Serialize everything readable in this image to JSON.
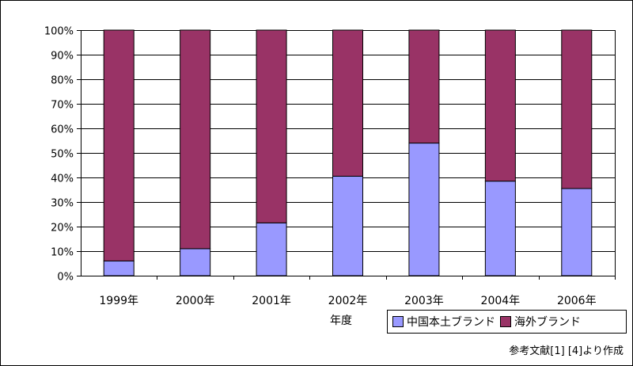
{
  "chart_data": {
    "type": "bar",
    "stacked": true,
    "categories": [
      "1999年",
      "2000年",
      "2001年",
      "2002年",
      "2003年",
      "2004年",
      "2006年"
    ],
    "series": [
      {
        "name": "中国本土ブランド",
        "color": "#9999ff",
        "values": [
          6,
          11,
          21.5,
          40.5,
          54,
          38.5,
          35.5
        ]
      },
      {
        "name": "海外ブランド",
        "color": "#993366",
        "values": [
          94,
          89,
          78.5,
          59.5,
          46,
          61.5,
          64.5
        ]
      }
    ],
    "yticks": [
      "0%",
      "10%",
      "20%",
      "30%",
      "40%",
      "50%",
      "60%",
      "70%",
      "80%",
      "90%",
      "100%"
    ],
    "ylim": [
      0,
      100
    ],
    "xlabel": "年度",
    "ylabel": "",
    "grid": true,
    "legend_position": "bottom-right",
    "source_note": "参考文献[1] [4]より作成"
  }
}
